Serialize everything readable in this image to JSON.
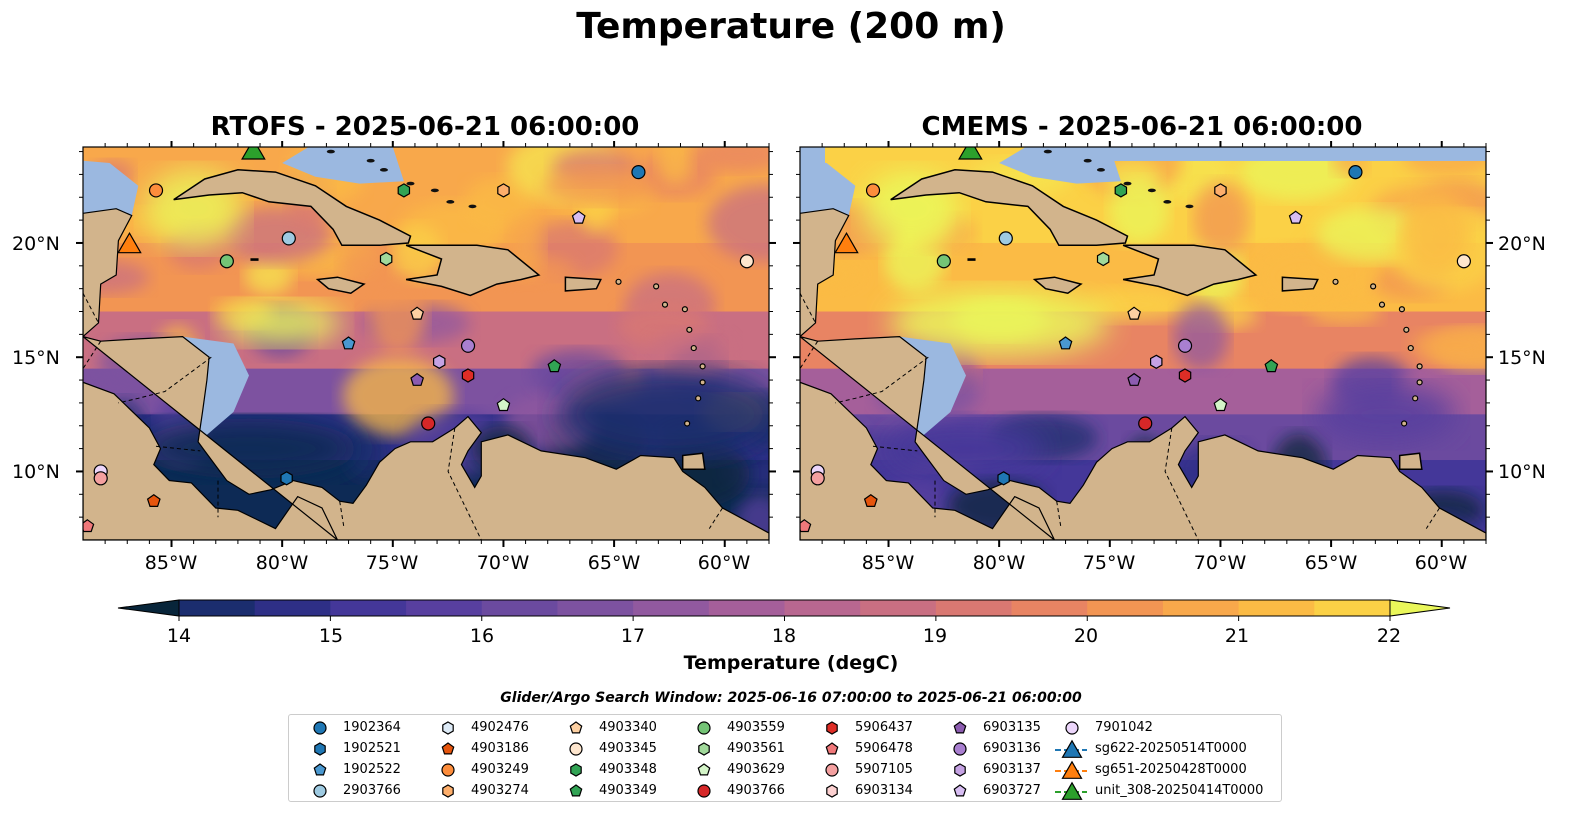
{
  "title": "Temperature (200 m)",
  "panels": [
    {
      "title": "RTOFS - 2025-06-21 06:00:00"
    },
    {
      "title": "CMEMS - 2025-06-21 06:00:00"
    }
  ],
  "axes": {
    "lat_ticks": [
      "20°N",
      "15°N",
      "10°N"
    ],
    "lon_ticks": [
      "85°W",
      "80°W",
      "75°W",
      "70°W",
      "65°W",
      "60°W"
    ]
  },
  "colorbar": {
    "label": "Temperature (degC)",
    "ticks": [
      "14",
      "15",
      "16",
      "17",
      "18",
      "19",
      "20",
      "21",
      "22"
    ],
    "range": [
      14,
      22
    ],
    "extend": "both",
    "colors": [
      "#08253a",
      "#0d2a55",
      "#1b2d6e",
      "#2e2f86",
      "#443799",
      "#583f9f",
      "#6b4a9f",
      "#7d52a0",
      "#91599f",
      "#a55f9a",
      "#b86790",
      "#c96f82",
      "#d97872",
      "#e88463",
      "#f29553",
      "#f8a84b",
      "#fbbb45",
      "#fbd146",
      "#f6e54f",
      "#eaf75a"
    ]
  },
  "caption": "Glider/Argo Search Window: 2025-06-16 07:00:00 to 2025-06-21 06:00:00",
  "legend": [
    {
      "label": "1902364",
      "marker": "circle",
      "color": "#1f77b4"
    },
    {
      "label": "1902521",
      "marker": "hexagon",
      "color": "#1f77b4"
    },
    {
      "label": "1902522",
      "marker": "pentagon",
      "color": "#4a98d0"
    },
    {
      "label": "2903766",
      "marker": "circle",
      "color": "#9ecae1"
    },
    {
      "label": "4902476",
      "marker": "hexagon",
      "color": "#deebf7"
    },
    {
      "label": "4903186",
      "marker": "pentagon",
      "color": "#e6550d"
    },
    {
      "label": "4903249",
      "marker": "circle",
      "color": "#fd8d3c"
    },
    {
      "label": "4903274",
      "marker": "hexagon",
      "color": "#fdae6b"
    },
    {
      "label": "4903340",
      "marker": "pentagon",
      "color": "#fdd0a2"
    },
    {
      "label": "4903345",
      "marker": "circle",
      "color": "#fee6ce"
    },
    {
      "label": "4903348",
      "marker": "hexagon",
      "color": "#31a354"
    },
    {
      "label": "4903349",
      "marker": "pentagon",
      "color": "#31a354"
    },
    {
      "label": "4903559",
      "marker": "circle",
      "color": "#74c476"
    },
    {
      "label": "4903561",
      "marker": "hexagon",
      "color": "#a1d99b"
    },
    {
      "label": "4903629",
      "marker": "pentagon",
      "color": "#d4f5c8"
    },
    {
      "label": "4903766",
      "marker": "circle",
      "color": "#d62728"
    },
    {
      "label": "5906437",
      "marker": "hexagon",
      "color": "#de2d26"
    },
    {
      "label": "5906478",
      "marker": "pentagon",
      "color": "#f0787a"
    },
    {
      "label": "5907105",
      "marker": "circle",
      "color": "#f4a0a0"
    },
    {
      "label": "6903134",
      "marker": "hexagon",
      "color": "#fcd0d0"
    },
    {
      "label": "6903135",
      "marker": "pentagon",
      "color": "#8c5cb0"
    },
    {
      "label": "6903136",
      "marker": "circle",
      "color": "#a97fd0"
    },
    {
      "label": "6903137",
      "marker": "hexagon",
      "color": "#c5a2e3"
    },
    {
      "label": "6903727",
      "marker": "pentagon",
      "color": "#d7bdf2"
    },
    {
      "label": "7901042",
      "marker": "circle",
      "color": "#ecd6fb"
    },
    {
      "label": "sg622-20250514T0000",
      "marker": "triangle",
      "color": "#1f77b4"
    },
    {
      "label": "sg651-20250428T0000",
      "marker": "triangle",
      "color": "#ff7f0e"
    },
    {
      "label": "unit_308-20250414T0000",
      "marker": "triangle",
      "color": "#2ca02c"
    }
  ],
  "map_extent": {
    "lon": [
      -89,
      -58
    ],
    "lat": [
      7,
      24.2
    ]
  },
  "stations": [
    {
      "id": "4903249",
      "lon": -85.7,
      "lat": 22.3
    },
    {
      "id": "1902364",
      "lon": -63.9,
      "lat": 23.1
    },
    {
      "id": "4903274",
      "lon": -70.0,
      "lat": 22.3
    },
    {
      "id": "4903348",
      "lon": -74.5,
      "lat": 22.3
    },
    {
      "id": "6903727",
      "lon": -66.6,
      "lat": 21.1
    },
    {
      "id": "2903766",
      "lon": -79.7,
      "lat": 20.2
    },
    {
      "id": "4903559",
      "lon": -82.5,
      "lat": 19.2
    },
    {
      "id": "4903561",
      "lon": -75.3,
      "lat": 19.3
    },
    {
      "id": "4903345",
      "lon": -59.0,
      "lat": 19.2
    },
    {
      "id": "4903340",
      "lon": -73.9,
      "lat": 16.9
    },
    {
      "id": "1902522",
      "lon": -77.0,
      "lat": 15.6
    },
    {
      "id": "6903136",
      "lon": -71.6,
      "lat": 15.5
    },
    {
      "id": "6903137",
      "lon": -72.9,
      "lat": 14.8
    },
    {
      "id": "4903349",
      "lon": -67.7,
      "lat": 14.6
    },
    {
      "id": "6903135",
      "lon": -73.9,
      "lat": 14.0
    },
    {
      "id": "5906437",
      "lon": -71.6,
      "lat": 14.2
    },
    {
      "id": "4903629",
      "lon": -70.0,
      "lat": 12.9
    },
    {
      "id": "4903766",
      "lon": -73.4,
      "lat": 12.1
    },
    {
      "id": "1902521",
      "lon": -79.8,
      "lat": 9.7
    },
    {
      "id": "7901042",
      "lon": -88.2,
      "lat": 10.0
    },
    {
      "id": "5907105",
      "lon": -88.2,
      "lat": 9.7
    },
    {
      "id": "4903186",
      "lon": -85.8,
      "lat": 8.7
    },
    {
      "id": "5906478",
      "lon": -88.8,
      "lat": 7.6
    }
  ],
  "gliders": [
    {
      "id": "sg651-20250428T0000",
      "lon": -86.9,
      "lat": 20.0
    },
    {
      "id": "unit_308-20250414T0000",
      "lon": -81.3,
      "lat": 24.1
    }
  ]
}
